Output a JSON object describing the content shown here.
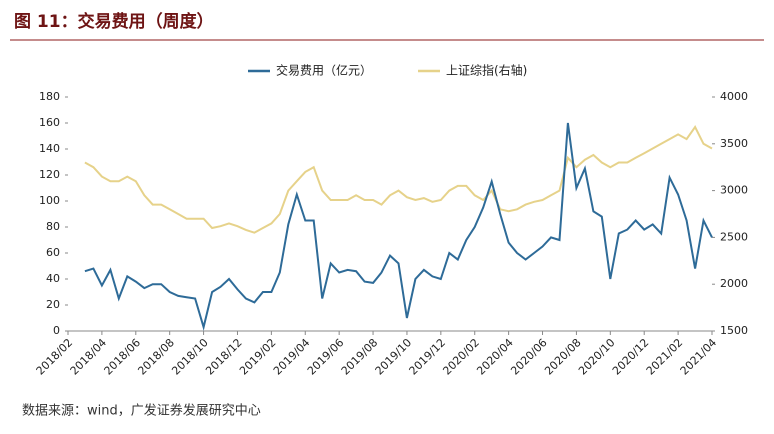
{
  "chart_data": {
    "type": "line",
    "title": "图 11：交易费用（周度）",
    "source": "数据来源：wind，广发证券发展研究中心",
    "categories": [
      "2018/02",
      null,
      null,
      null,
      "2018/04",
      null,
      null,
      null,
      "2018/06",
      null,
      null,
      null,
      "2018/08",
      null,
      null,
      null,
      "2018/10",
      null,
      null,
      null,
      "2018/12",
      null,
      null,
      null,
      "2019/02",
      null,
      null,
      null,
      "2019/04",
      null,
      null,
      null,
      "2019/06",
      null,
      null,
      null,
      "2019/08",
      null,
      null,
      null,
      "2019/10",
      null,
      null,
      null,
      "2019/12",
      null,
      null,
      null,
      "2020/02",
      null,
      null,
      null,
      "2020/04",
      null,
      null,
      null,
      "2020/06",
      null,
      null,
      null,
      "2020/08",
      null,
      null,
      null,
      "2020/10",
      null,
      null,
      null,
      "2020/12",
      null,
      null,
      null,
      "2021/02",
      null,
      null,
      null,
      "2021/04"
    ],
    "series": [
      {
        "name": "交易费用（亿元）",
        "color": "#2e6b98",
        "axis": "y",
        "values": [
          null,
          null,
          46,
          48,
          35,
          47,
          25,
          42,
          38,
          33,
          36,
          36,
          30,
          27,
          26,
          25,
          3,
          30,
          34,
          40,
          32,
          25,
          22,
          30,
          30,
          45,
          82,
          105,
          85,
          85,
          25,
          52,
          45,
          47,
          46,
          38,
          37,
          45,
          58,
          52,
          10,
          40,
          47,
          42,
          40,
          60,
          55,
          70,
          80,
          95,
          115,
          90,
          68,
          60,
          55,
          60,
          65,
          72,
          70,
          160,
          110,
          125,
          92,
          88,
          40,
          75,
          78,
          85,
          78,
          82,
          75,
          118,
          105,
          85,
          48,
          85,
          72
        ]
      },
      {
        "name": "上证综指(右轴)",
        "color": "#e6d28a",
        "axis": "y2",
        "values": [
          null,
          null,
          3300,
          3250,
          3150,
          3100,
          3100,
          3150,
          3100,
          2950,
          2850,
          2850,
          2800,
          2750,
          2700,
          2700,
          2700,
          2600,
          2620,
          2650,
          2620,
          2580,
          2550,
          2600,
          2650,
          2750,
          3000,
          3100,
          3200,
          3250,
          3000,
          2900,
          2900,
          2900,
          2950,
          2900,
          2900,
          2850,
          2950,
          3000,
          2930,
          2900,
          2920,
          2880,
          2900,
          3000,
          3050,
          3050,
          2950,
          2900,
          3000,
          2800,
          2780,
          2800,
          2850,
          2880,
          2900,
          2950,
          3000,
          3350,
          3250,
          3330,
          3380,
          3300,
          3250,
          3300,
          3300,
          3350,
          3400,
          3450,
          3500,
          3550,
          3600,
          3550,
          3680,
          3500,
          3450
        ]
      }
    ],
    "ylim": [
      0,
      180
    ],
    "yticks": [
      0,
      20,
      40,
      60,
      80,
      100,
      120,
      140,
      160,
      180
    ],
    "y2lim": [
      1500,
      4000
    ],
    "y2ticks": [
      1500,
      2000,
      2500,
      3000,
      3500,
      4000
    ],
    "legend": "top"
  }
}
